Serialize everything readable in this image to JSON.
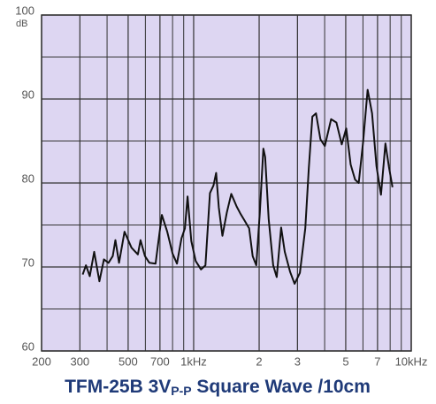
{
  "chart_data": {
    "type": "line",
    "title": {
      "main": "TFM-25B 3V",
      "subscript": "P-P",
      "rest": " Square Wave /10cm"
    },
    "ylabel": "dB",
    "xscale": "log",
    "xlim": [
      200,
      10000
    ],
    "xticks": [
      200,
      300,
      500,
      700,
      {
        "value": 1000,
        "label": "1kHz"
      },
      {
        "value": 2000,
        "label": "2"
      },
      {
        "value": 3000,
        "label": "3"
      },
      {
        "value": 5000,
        "label": "5"
      },
      {
        "value": 7000,
        "label": "7"
      },
      {
        "value": 10000,
        "label": "10kHz"
      }
    ],
    "xminorgrid": [
      400,
      600,
      800,
      900,
      4000,
      6000,
      8000,
      9000
    ],
    "ylim": [
      60,
      100
    ],
    "yticks": [
      60,
      70,
      80,
      90,
      100
    ],
    "yminorgrid": [
      65,
      75,
      85,
      95
    ],
    "grid": true,
    "series": [
      {
        "color": "#111111",
        "x": [
          309,
          320,
          333,
          349,
          369,
          387,
          406,
          425,
          437,
          454,
          481,
          518,
          554,
          570,
          597,
          626,
          668,
          714,
          756,
          800,
          838,
          879,
          912,
          938,
          975,
          1022,
          1081,
          1133,
          1188,
          1234,
          1269,
          1305,
          1356,
          1421,
          1489,
          1576,
          1637,
          1716,
          1798,
          1868,
          1940,
          2014,
          2092,
          2131,
          2213,
          2320,
          2409,
          2525,
          2622,
          2776,
          2910,
          3079,
          3258,
          3382,
          3513,
          3648,
          3823,
          4008,
          4282,
          4530,
          4794,
          5025,
          5267,
          5522,
          5735,
          6011,
          6302,
          6605,
          6923,
          7258,
          7609,
          7902,
          8204
        ],
        "values": [
          69.1,
          70.2,
          68.9,
          71.8,
          68.3,
          70.9,
          70.5,
          71.3,
          73.2,
          70.5,
          74.2,
          72.3,
          71.5,
          73.2,
          71.3,
          70.5,
          70.4,
          76.2,
          74.2,
          71.6,
          70.4,
          73.4,
          74.6,
          78.4,
          73.1,
          70.7,
          69.7,
          70.2,
          78.8,
          79.7,
          81.2,
          77.1,
          73.7,
          76.5,
          78.7,
          77.2,
          76.4,
          75.5,
          74.6,
          71.3,
          70.2,
          76.5,
          84.1,
          83.1,
          75.7,
          70.2,
          68.8,
          74.7,
          71.8,
          69.4,
          68.0,
          69.3,
          74.6,
          81.8,
          87.9,
          88.3,
          85.2,
          84.4,
          87.6,
          87.2,
          84.6,
          86.5,
          82.2,
          80.4,
          80.0,
          84.9,
          91.1,
          88.3,
          82.0,
          78.6,
          84.7,
          81.9,
          79.5
        ]
      }
    ]
  }
}
